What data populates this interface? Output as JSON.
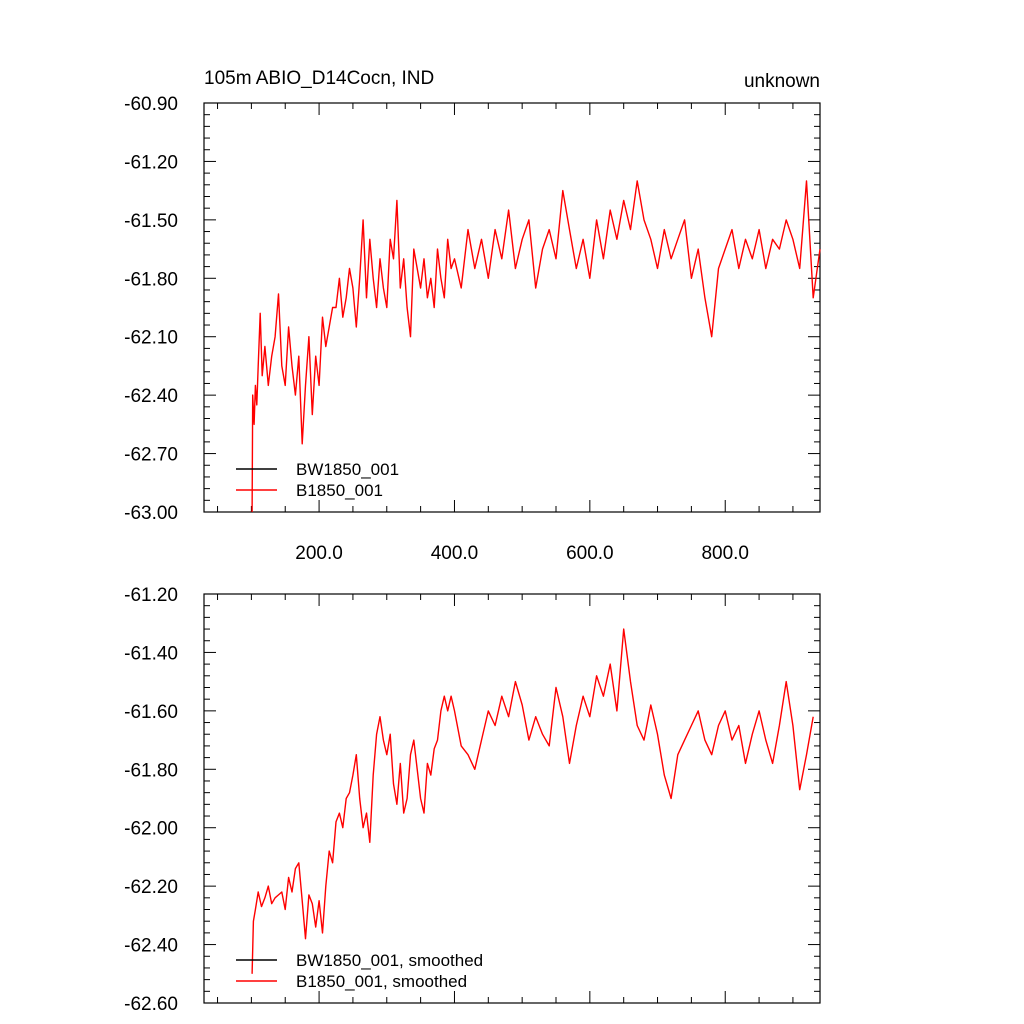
{
  "chart_data": [
    {
      "type": "line",
      "title_left": "105m ABIO_D14Cocn, IND",
      "title_right": "unknown",
      "xlim": [
        30,
        940
      ],
      "ylim": [
        -63.0,
        -60.9
      ],
      "yticks": [
        -63.0,
        -62.7,
        -62.4,
        -62.1,
        -61.8,
        -61.5,
        -61.2,
        -60.9
      ],
      "ytick_labels": [
        "-63.00",
        "-62.70",
        "-62.40",
        "-62.10",
        "-61.80",
        "-61.50",
        "-61.20",
        "-60.90"
      ],
      "xticks": [
        200,
        400,
        600,
        800
      ],
      "xtick_labels": [
        "200.0",
        "400.0",
        "600.0",
        "800.0"
      ],
      "legend_position": "bottom-left",
      "series": [
        {
          "name": "BW1850_001",
          "color": "#000000",
          "x": [],
          "y": []
        },
        {
          "name": "B1850_001",
          "color": "#ff0000",
          "x": [
            101,
            102,
            104,
            106,
            108,
            110,
            113,
            116,
            120,
            125,
            130,
            135,
            140,
            145,
            150,
            155,
            160,
            165,
            170,
            175,
            180,
            185,
            190,
            195,
            200,
            205,
            210,
            215,
            220,
            225,
            230,
            235,
            240,
            245,
            250,
            255,
            260,
            265,
            270,
            275,
            280,
            285,
            290,
            295,
            300,
            305,
            310,
            315,
            320,
            325,
            330,
            335,
            340,
            345,
            350,
            355,
            360,
            365,
            370,
            375,
            380,
            385,
            390,
            395,
            400,
            410,
            420,
            430,
            440,
            450,
            460,
            470,
            480,
            490,
            500,
            510,
            520,
            530,
            540,
            550,
            560,
            570,
            580,
            590,
            600,
            610,
            620,
            630,
            640,
            650,
            660,
            670,
            680,
            690,
            700,
            710,
            720,
            730,
            740,
            750,
            760,
            770,
            780,
            790,
            800,
            810,
            820,
            830,
            840,
            850,
            860,
            870,
            880,
            890,
            900,
            910,
            920,
            930,
            940
          ],
          "y": [
            -63.0,
            -62.4,
            -62.55,
            -62.35,
            -62.45,
            -62.25,
            -61.98,
            -62.3,
            -62.15,
            -62.35,
            -62.2,
            -62.1,
            -61.88,
            -62.25,
            -62.35,
            -62.05,
            -62.25,
            -62.4,
            -62.2,
            -62.65,
            -62.35,
            -62.1,
            -62.5,
            -62.2,
            -62.35,
            -62.0,
            -62.15,
            -62.05,
            -61.95,
            -61.95,
            -61.8,
            -62.0,
            -61.9,
            -61.75,
            -61.85,
            -62.05,
            -61.8,
            -61.5,
            -61.9,
            -61.6,
            -61.8,
            -61.95,
            -61.7,
            -61.85,
            -61.95,
            -61.6,
            -61.7,
            -61.4,
            -61.85,
            -61.7,
            -61.95,
            -62.1,
            -61.65,
            -61.75,
            -61.85,
            -61.7,
            -61.9,
            -61.8,
            -61.95,
            -61.65,
            -61.8,
            -61.9,
            -61.6,
            -61.75,
            -61.7,
            -61.85,
            -61.55,
            -61.75,
            -61.6,
            -61.8,
            -61.55,
            -61.7,
            -61.45,
            -61.75,
            -61.6,
            -61.5,
            -61.85,
            -61.65,
            -61.55,
            -61.7,
            -61.35,
            -61.55,
            -61.75,
            -61.6,
            -61.8,
            -61.5,
            -61.7,
            -61.45,
            -61.6,
            -61.4,
            -61.55,
            -61.3,
            -61.5,
            -61.6,
            -61.75,
            -61.55,
            -61.7,
            -61.6,
            -61.5,
            -61.8,
            -61.65,
            -61.9,
            -62.1,
            -61.75,
            -61.65,
            -61.55,
            -61.75,
            -61.6,
            -61.7,
            -61.55,
            -61.75,
            -61.6,
            -61.65,
            -61.5,
            -61.6,
            -61.75,
            -61.3,
            -61.9,
            -61.65
          ]
        }
      ]
    },
    {
      "type": "line",
      "xlim": [
        30,
        940
      ],
      "ylim": [
        -62.6,
        -61.2
      ],
      "yticks": [
        -62.6,
        -62.4,
        -62.2,
        -62.0,
        -61.8,
        -61.6,
        -61.4,
        -61.2
      ],
      "ytick_labels": [
        "-62.60",
        "-62.40",
        "-62.20",
        "-62.00",
        "-61.80",
        "-61.60",
        "-61.40",
        "-61.20"
      ],
      "xticks": [
        200,
        400,
        600,
        800
      ],
      "legend_position": "bottom-left",
      "series": [
        {
          "name": "BW1850_001, smoothed",
          "color": "#000000",
          "x": [],
          "y": []
        },
        {
          "name": "B1850_001, smoothed",
          "color": "#ff0000",
          "x": [
            101,
            103,
            106,
            110,
            115,
            120,
            125,
            130,
            135,
            140,
            145,
            150,
            155,
            160,
            165,
            170,
            175,
            180,
            185,
            190,
            195,
            200,
            205,
            210,
            215,
            220,
            225,
            230,
            235,
            240,
            245,
            250,
            255,
            260,
            265,
            270,
            275,
            280,
            285,
            290,
            295,
            300,
            305,
            310,
            315,
            320,
            325,
            330,
            335,
            340,
            345,
            350,
            355,
            360,
            365,
            370,
            375,
            380,
            385,
            390,
            395,
            400,
            410,
            420,
            430,
            440,
            450,
            460,
            470,
            480,
            490,
            500,
            510,
            520,
            530,
            540,
            550,
            560,
            570,
            580,
            590,
            600,
            610,
            620,
            630,
            640,
            650,
            660,
            670,
            680,
            690,
            700,
            710,
            720,
            730,
            740,
            750,
            760,
            770,
            780,
            790,
            800,
            810,
            820,
            830,
            840,
            850,
            860,
            870,
            880,
            890,
            900,
            910,
            920,
            930
          ],
          "y": [
            -62.5,
            -62.32,
            -62.28,
            -62.22,
            -62.27,
            -62.24,
            -62.2,
            -62.26,
            -62.24,
            -62.23,
            -62.22,
            -62.28,
            -62.17,
            -62.22,
            -62.14,
            -62.12,
            -62.25,
            -62.38,
            -62.23,
            -62.26,
            -62.34,
            -62.25,
            -62.36,
            -62.2,
            -62.08,
            -62.12,
            -61.98,
            -61.95,
            -62.0,
            -61.9,
            -61.88,
            -61.82,
            -61.75,
            -61.9,
            -62.0,
            -61.95,
            -62.05,
            -61.82,
            -61.68,
            -61.62,
            -61.7,
            -61.75,
            -61.68,
            -61.85,
            -61.92,
            -61.78,
            -61.95,
            -61.9,
            -61.75,
            -61.7,
            -61.8,
            -61.9,
            -61.95,
            -61.78,
            -61.82,
            -61.73,
            -61.7,
            -61.6,
            -61.55,
            -61.6,
            -61.55,
            -61.6,
            -61.72,
            -61.75,
            -61.8,
            -61.7,
            -61.6,
            -61.65,
            -61.55,
            -61.62,
            -61.5,
            -61.58,
            -61.7,
            -61.62,
            -61.68,
            -61.72,
            -61.52,
            -61.62,
            -61.78,
            -61.65,
            -61.55,
            -61.62,
            -61.48,
            -61.55,
            -61.44,
            -61.6,
            -61.32,
            -61.5,
            -61.65,
            -61.7,
            -61.58,
            -61.68,
            -61.82,
            -61.9,
            -61.75,
            -61.7,
            -61.65,
            -61.6,
            -61.7,
            -61.75,
            -61.65,
            -61.6,
            -61.7,
            -61.65,
            -61.78,
            -61.68,
            -61.6,
            -61.7,
            -61.78,
            -61.65,
            -61.5,
            -61.65,
            -61.87,
            -61.75,
            -61.62
          ]
        }
      ]
    }
  ]
}
